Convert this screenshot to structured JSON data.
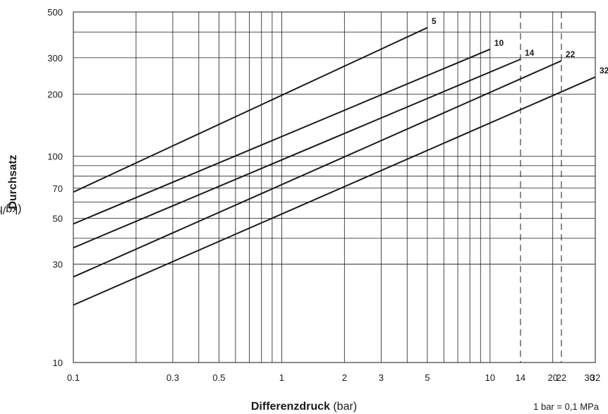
{
  "chart_data": {
    "type": "line",
    "xscale": "log",
    "yscale": "log",
    "xlim": [
      0.1,
      32
    ],
    "ylim": [
      10,
      500
    ],
    "xticks": [
      {
        "value": 0.1,
        "label": "0.1"
      },
      {
        "value": 0.3,
        "label": "0.3"
      },
      {
        "value": 0.5,
        "label": "0.5"
      },
      {
        "value": 1,
        "label": "1"
      },
      {
        "value": 2,
        "label": "2"
      },
      {
        "value": 3,
        "label": "3"
      },
      {
        "value": 5,
        "label": "5"
      },
      {
        "value": 10,
        "label": "10"
      },
      {
        "value": 14,
        "label": "14"
      },
      {
        "value": 20,
        "label": "20"
      },
      {
        "value": 22,
        "label": "22"
      },
      {
        "value": 30,
        "label": "30"
      },
      {
        "value": 32,
        "label": "32"
      }
    ],
    "yticks": [
      {
        "value": 10,
        "label": "10"
      },
      {
        "value": 30,
        "label": "30"
      },
      {
        "value": 50,
        "label": "50"
      },
      {
        "value": 70,
        "label": "70"
      },
      {
        "value": 100,
        "label": "100"
      },
      {
        "value": 200,
        "label": "200"
      },
      {
        "value": 300,
        "label": "300"
      },
      {
        "value": 500,
        "label": "500"
      }
    ],
    "x_gridlines": [
      0.1,
      0.2,
      0.3,
      0.4,
      0.5,
      0.6,
      0.7,
      0.8,
      0.9,
      1,
      2,
      3,
      4,
      5,
      6,
      7,
      8,
      9,
      10,
      20
    ],
    "y_gridlines": [
      10,
      30,
      40,
      50,
      60,
      70,
      80,
      90,
      100,
      200,
      300,
      400
    ],
    "dashed_x": [
      14,
      22
    ],
    "series": [
      {
        "name": "5",
        "x": [
          0.1,
          5
        ],
        "y": [
          67,
          420
        ]
      },
      {
        "name": "10",
        "x": [
          0.1,
          10
        ],
        "y": [
          47,
          330
        ]
      },
      {
        "name": "14",
        "x": [
          0.1,
          14
        ],
        "y": [
          36,
          295
        ]
      },
      {
        "name": "22",
        "x": [
          0.1,
          22
        ],
        "y": [
          26,
          290
        ]
      },
      {
        "name": "32",
        "x": [
          0.1,
          32
        ],
        "y": [
          19,
          242
        ]
      }
    ],
    "xlabel": {
      "bold": "Differenzdruck",
      "unit": "(bar)"
    },
    "ylabel": {
      "bold": "Durchsatz",
      "unit": "(kg/h)"
    },
    "note": "1 bar = 0,1 MPa",
    "grid": true,
    "line_color": "#1a1a1a"
  }
}
